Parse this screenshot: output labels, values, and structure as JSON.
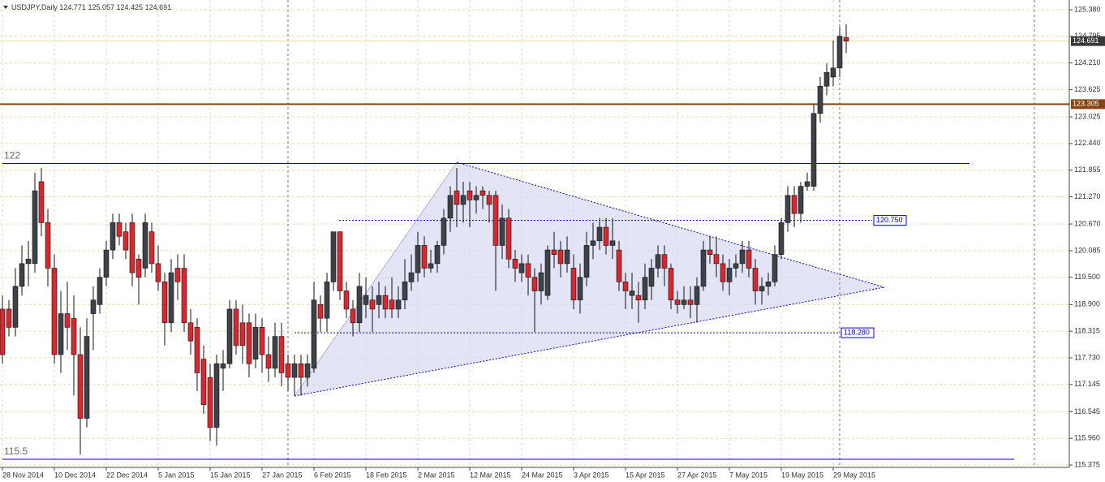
{
  "chart_data": {
    "type": "candlestick",
    "title": "USDJPY,Daily",
    "categories": [
      "28 Nov 2014",
      null,
      null,
      null,
      null,
      null,
      null,
      null,
      "10 Dec 2014",
      null,
      null,
      null,
      null,
      null,
      null,
      null,
      "22 Dec 2014",
      null,
      null,
      null,
      null,
      null,
      null,
      null,
      "5 Jan 2015",
      null,
      null,
      null,
      null,
      null,
      null,
      null,
      "15 Jan 2015",
      null,
      null,
      null,
      null,
      null,
      null,
      null,
      "27 Jan 2015",
      null,
      null,
      null,
      null,
      null,
      null,
      null,
      "6 Feb 2015",
      null,
      null,
      null,
      null,
      null,
      null,
      null,
      "18 Feb 2015",
      null,
      null,
      null,
      null,
      null,
      null,
      null,
      "2 Mar 2015",
      null,
      null,
      null,
      null,
      null,
      null,
      null,
      "12 Mar 2015",
      null,
      null,
      null,
      null,
      null,
      null,
      null,
      "24 Mar 2015",
      null,
      null,
      null,
      null,
      null,
      null,
      null,
      "3 Apr 2015",
      null,
      null,
      null,
      null,
      null,
      null,
      null,
      "15 Apr 2015",
      null,
      null,
      null,
      null,
      null,
      null,
      null,
      "27 Apr 2015",
      null,
      null,
      null,
      null,
      null,
      null,
      null,
      "7 May 2015",
      null,
      null,
      null,
      null,
      null,
      null,
      null,
      "19 May 2015",
      null,
      null,
      null,
      null,
      null,
      null,
      null,
      "29 May 2015",
      null,
      null
    ],
    "open": [
      118.8,
      118.8,
      118.4,
      119.3,
      119.8,
      119.8,
      121.6,
      120.7,
      119.7,
      117.8,
      118.7,
      118.6,
      117.8,
      116.4,
      118.7,
      118.9,
      119.5,
      120.1,
      120.7,
      120.5,
      120.7,
      119.9,
      119.7,
      120.5,
      119.8,
      119.4,
      118.5,
      119.7,
      119.7,
      118.5,
      118.4,
      117.7,
      117.3,
      116.2,
      117.5,
      117.6,
      118.8,
      118.5,
      118.5,
      117.7,
      118.4,
      117.8,
      117.5,
      118.2,
      117.6,
      117.3,
      117.6,
      117.3,
      117.5,
      118.9,
      118.6,
      119.4,
      120.5,
      119.2,
      118.8,
      118.5,
      118.9,
      119.0,
      118.9,
      119.1,
      119.0,
      118.8,
      119.0,
      119.4,
      119.6,
      120.2,
      119.7,
      119.8,
      120.2,
      120.8,
      121.4,
      121.1,
      121.4,
      121.2,
      121.4,
      121.3,
      121.3,
      120.2,
      120.8,
      119.9,
      119.6,
      119.8,
      119.5,
      119.2,
      119.1,
      120.1,
      120.1,
      119.8,
      119.7,
      119.0,
      119.5,
      120.2,
      120.3,
      120.6,
      120.2,
      120.1,
      119.4,
      119.1,
      119.1,
      119.0,
      119.3,
      119.7,
      120.0,
      119.7,
      119.0,
      118.9,
      119.0,
      118.9,
      119.3,
      120.1,
      120.0,
      119.8,
      119.4,
      119.7,
      119.8,
      120.1,
      119.7,
      119.2,
      119.3,
      119.4,
      120.0,
      120.7,
      121.3,
      120.9,
      121.5,
      121.5,
      123.1,
      123.7,
      123.9,
      124.1,
      124.771
    ],
    "high": [
      119.1,
      119.0,
      119.7,
      120.2,
      120.3,
      121.8,
      121.9,
      121.0,
      120.0,
      119.2,
      119.4,
      119.1,
      118.4,
      118.6,
      119.3,
      119.7,
      120.3,
      120.9,
      120.9,
      120.7,
      120.9,
      120.0,
      120.9,
      120.7,
      120.2,
      119.6,
      119.9,
      120.0,
      120.0,
      118.8,
      118.6,
      118.0,
      117.6,
      117.8,
      117.9,
      119.0,
      119.0,
      118.9,
      118.7,
      118.7,
      118.6,
      118.2,
      118.5,
      118.5,
      117.8,
      117.8,
      117.8,
      117.8,
      119.4,
      119.1,
      119.6,
      120.5,
      120.5,
      119.4,
      119.0,
      119.6,
      119.5,
      119.3,
      119.4,
      119.3,
      119.5,
      119.3,
      119.9,
      120.0,
      120.5,
      120.4,
      120.1,
      120.3,
      121.0,
      121.5,
      121.9,
      121.6,
      121.6,
      121.5,
      121.5,
      121.4,
      121.4,
      121.1,
      121.0,
      120.1,
      120.0,
      120.0,
      119.7,
      119.8,
      120.2,
      120.5,
      120.3,
      120.4,
      120.0,
      119.8,
      120.5,
      120.7,
      120.8,
      120.8,
      120.8,
      120.3,
      119.6,
      119.6,
      119.4,
      119.8,
      119.9,
      120.2,
      120.2,
      119.8,
      119.2,
      119.3,
      119.3,
      119.5,
      120.3,
      120.4,
      120.4,
      120.0,
      119.9,
      120.0,
      120.3,
      120.3,
      119.9,
      119.5,
      119.6,
      120.2,
      120.8,
      121.5,
      121.5,
      121.6,
      121.8,
      123.3,
      123.9,
      124.2,
      124.7,
      125.0,
      125.057
    ],
    "low": [
      117.6,
      118.2,
      118.2,
      119.1,
      119.3,
      119.6,
      120.4,
      119.3,
      117.6,
      117.4,
      117.9,
      116.9,
      115.6,
      116.2,
      117.9,
      118.7,
      119.3,
      119.9,
      120.2,
      119.9,
      119.3,
      118.9,
      119.5,
      119.6,
      119.2,
      118.0,
      118.3,
      119.0,
      118.3,
      117.8,
      117.0,
      116.5,
      115.9,
      115.8,
      117.0,
      117.5,
      117.8,
      117.6,
      117.3,
      117.5,
      117.4,
      117.2,
      117.3,
      117.1,
      117.0,
      116.9,
      116.9,
      117.1,
      117.4,
      118.3,
      118.3,
      119.2,
      119.0,
      118.6,
      118.2,
      118.3,
      118.6,
      118.3,
      118.6,
      118.6,
      118.6,
      118.6,
      118.8,
      119.2,
      119.4,
      119.5,
      119.6,
      119.6,
      120.0,
      120.5,
      120.6,
      120.7,
      120.6,
      120.9,
      121.0,
      120.7,
      119.2,
      119.9,
      119.7,
      119.4,
      119.4,
      119.1,
      118.3,
      118.9,
      119.0,
      119.7,
      119.5,
      119.6,
      118.8,
      118.7,
      119.3,
      119.9,
      120.1,
      120.0,
      119.9,
      119.2,
      118.8,
      118.8,
      118.5,
      118.8,
      119.0,
      119.5,
      119.3,
      118.8,
      118.7,
      118.8,
      118.6,
      118.5,
      119.2,
      119.8,
      119.5,
      119.2,
      119.1,
      119.5,
      119.6,
      119.5,
      118.9,
      118.9,
      119.1,
      119.3,
      119.9,
      120.5,
      120.6,
      120.7,
      121.4,
      121.4,
      122.9,
      123.5,
      123.7,
      123.9,
      124.425
    ],
    "close": [
      117.8,
      118.4,
      119.3,
      119.8,
      119.9,
      121.4,
      120.7,
      119.7,
      117.8,
      118.7,
      118.4,
      117.8,
      116.4,
      118.2,
      119.0,
      119.5,
      120.1,
      120.7,
      120.4,
      120.1,
      119.6,
      119.5,
      120.7,
      119.8,
      119.4,
      118.5,
      119.6,
      119.4,
      118.5,
      118.1,
      117.4,
      116.7,
      116.2,
      117.6,
      117.6,
      118.8,
      118.0,
      118.0,
      117.6,
      118.4,
      117.8,
      117.5,
      118.2,
      117.4,
      117.3,
      117.6,
      117.3,
      117.6,
      119.0,
      118.6,
      119.4,
      120.5,
      119.2,
      118.8,
      118.5,
      119.3,
      119.1,
      118.8,
      119.1,
      118.8,
      118.8,
      119.0,
      119.4,
      119.6,
      120.2,
      119.7,
      119.8,
      120.2,
      120.8,
      121.3,
      121.1,
      121.3,
      121.2,
      121.3,
      121.3,
      121.1,
      120.2,
      120.8,
      119.9,
      119.7,
      119.8,
      119.5,
      119.2,
      119.6,
      120.1,
      120.0,
      119.8,
      120.1,
      119.0,
      119.5,
      120.2,
      120.3,
      120.6,
      120.2,
      120.3,
      119.4,
      119.2,
      119.2,
      119.0,
      119.5,
      119.7,
      120.0,
      119.7,
      119.0,
      118.9,
      119.0,
      118.9,
      119.3,
      120.1,
      120.0,
      119.8,
      119.4,
      119.7,
      119.8,
      120.1,
      119.7,
      119.2,
      119.3,
      119.4,
      120.0,
      120.7,
      121.3,
      120.9,
      121.5,
      121.6,
      123.1,
      123.7,
      124.0,
      124.1,
      124.8,
      124.691
    ],
    "up_color": "#3d4249",
    "down_color": "#d42a2f",
    "ylim": [
      115.375,
      125.38
    ],
    "yticks": [
      {
        "value": 125.38,
        "label": "125.380"
      },
      {
        "value": 124.795,
        "label": "124.795"
      },
      {
        "value": 124.21,
        "label": "124.210"
      },
      {
        "value": 123.625,
        "label": "123.625"
      },
      {
        "value": 123.025,
        "label": "123.025"
      },
      {
        "value": 122.44,
        "label": "122.440"
      },
      {
        "value": 121.855,
        "label": "121.855"
      },
      {
        "value": 121.27,
        "label": "121.270"
      },
      {
        "value": 120.67,
        "label": "120.670"
      },
      {
        "value": 120.085,
        "label": "120.085"
      },
      {
        "value": 119.5,
        "label": "119.500"
      },
      {
        "value": 118.9,
        "label": "118.900"
      },
      {
        "value": 118.315,
        "label": "118.315"
      },
      {
        "value": 117.73,
        "label": "117.730"
      },
      {
        "value": 117.145,
        "label": "117.145"
      },
      {
        "value": 116.545,
        "label": "116.545"
      },
      {
        "value": 115.96,
        "label": "115.960"
      },
      {
        "value": 115.375,
        "label": "115.375"
      }
    ],
    "grid": true,
    "levels": [
      {
        "value": 122,
        "color": "#0000cc",
        "kind": "text"
      },
      {
        "value": 115.5,
        "color": "#0000cc",
        "kind": "text"
      },
      {
        "value": 123.305,
        "color": "#8b4513",
        "kind": "axis"
      },
      {
        "value": 120.75,
        "label": "120.750",
        "color": "#0000cc",
        "kind": "box"
      },
      {
        "value": 118.28,
        "label": "118.280",
        "color": "#0000cc",
        "kind": "box"
      }
    ],
    "bid_color": "#e6df9a"
  }
}
